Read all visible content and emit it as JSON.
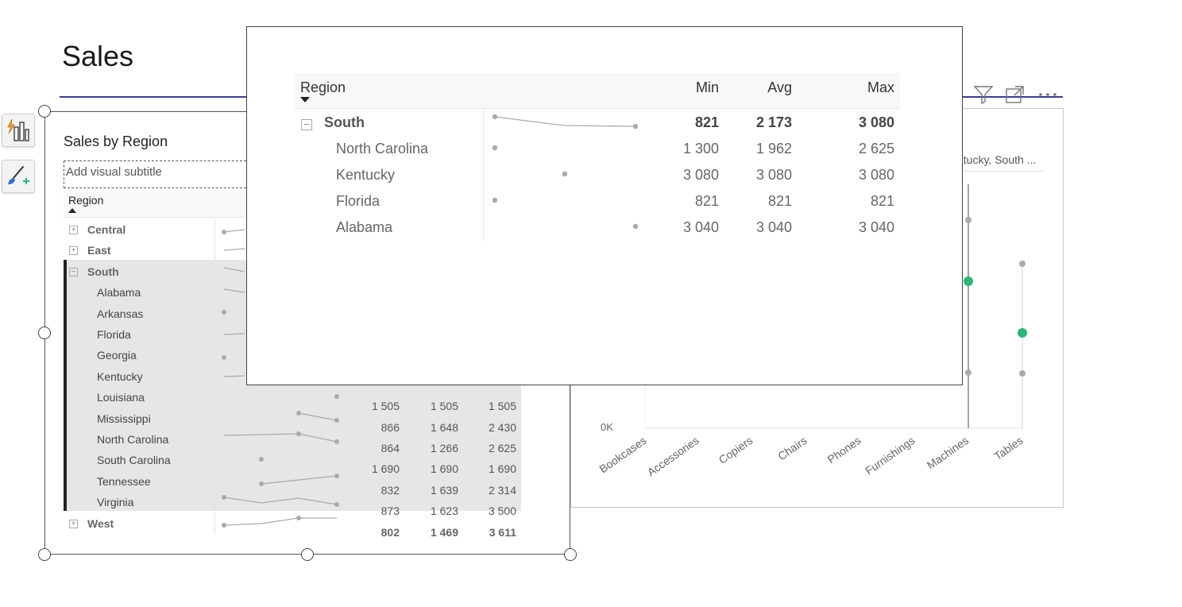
{
  "page": {
    "title": "Sales"
  },
  "tools": {
    "quick_insights_icon": "bar-chart-lightning-icon",
    "format_icon": "paintbrush-plus-icon"
  },
  "left_visual": {
    "title": "Sales by Region",
    "subtitle_placeholder": "Add visual subtitle",
    "header": {
      "region": "Region"
    },
    "rows": [
      {
        "label": "Central",
        "level": 0,
        "expand": "+",
        "min": "",
        "avg": "",
        "max": ""
      },
      {
        "label": "East",
        "level": 0,
        "expand": "+",
        "min": "",
        "avg": "",
        "max": ""
      },
      {
        "label": "South",
        "level": 0,
        "expand": "−",
        "min": "",
        "avg": "",
        "max": ""
      },
      {
        "label": "Alabama",
        "level": 1,
        "min": "",
        "avg": "",
        "max": ""
      },
      {
        "label": "Arkansas",
        "level": 1,
        "min": "",
        "avg": "",
        "max": ""
      },
      {
        "label": "Florida",
        "level": 1,
        "min": "",
        "avg": "",
        "max": ""
      },
      {
        "label": "Georgia",
        "level": 1,
        "min": "",
        "avg": "",
        "max": ""
      },
      {
        "label": "Kentucky",
        "level": 1,
        "min": "",
        "avg": "",
        "max": ""
      },
      {
        "label": "Louisiana",
        "level": 1,
        "min": "1 505",
        "avg": "1 505",
        "max": "1 505"
      },
      {
        "label": "Mississippi",
        "level": 1,
        "min": "866",
        "avg": "1 648",
        "max": "2 430"
      },
      {
        "label": "North Carolina",
        "level": 1,
        "min": "864",
        "avg": "1 266",
        "max": "2 625"
      },
      {
        "label": "South Carolina",
        "level": 1,
        "min": "1 690",
        "avg": "1 690",
        "max": "1 690"
      },
      {
        "label": "Tennessee",
        "level": 1,
        "min": "832",
        "avg": "1 639",
        "max": "2 314"
      },
      {
        "label": "Virginia",
        "level": 1,
        "min": "873",
        "avg": "1 623",
        "max": "3 500"
      },
      {
        "label": "West",
        "level": 0,
        "expand": "+",
        "min": "802",
        "avg": "1 469",
        "max": "3 611"
      }
    ]
  },
  "right_chart": {
    "filter_text": "ntucky, South ...",
    "y_tick": "0K",
    "x_categories": [
      "Bookcases",
      "Accessories",
      "Copiers",
      "Chairs",
      "Phones",
      "Furnishings",
      "Machines",
      "Tables"
    ],
    "header_icons": [
      "filter-icon",
      "focus-mode-icon",
      "more-options-icon"
    ],
    "accent_color": "#2bb673",
    "point_color": "#aaaaaa"
  },
  "tooltip": {
    "headers": {
      "region": "Region",
      "min": "Min",
      "avg": "Avg",
      "max": "Max"
    },
    "rows": [
      {
        "label": "South",
        "level": 0,
        "expand": "−",
        "min": "821",
        "avg": "2 173",
        "max": "3 080"
      },
      {
        "label": "North Carolina",
        "level": 1,
        "min": "1 300",
        "avg": "1 962",
        "max": "2 625"
      },
      {
        "label": "Kentucky",
        "level": 1,
        "min": "3 080",
        "avg": "3 080",
        "max": "3 080"
      },
      {
        "label": "Florida",
        "level": 1,
        "min": "821",
        "avg": "821",
        "max": "821"
      },
      {
        "label": "Alabama",
        "level": 1,
        "min": "3 040",
        "avg": "3 040",
        "max": "3 040"
      }
    ]
  }
}
